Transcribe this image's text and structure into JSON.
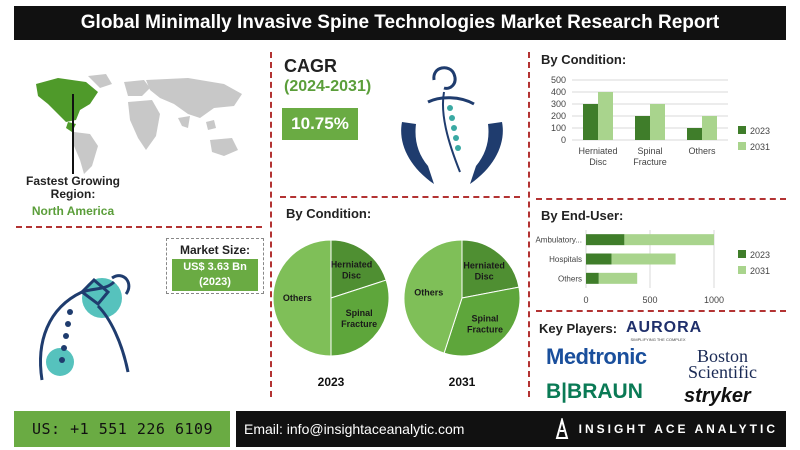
{
  "title": "Global Minimally Invasive Spine Technologies Market Research Report",
  "fastest_growing": {
    "label": "Fastest Growing Region:",
    "value": "North America"
  },
  "market_size": {
    "label": "Market Size:",
    "value": "US$ 3.63 Bn",
    "year": "(2023)"
  },
  "cagr": {
    "label": "CAGR",
    "period": "(2024-2031)",
    "value": "10.75%"
  },
  "colors": {
    "dark_green": "#3f7d2a",
    "light_green": "#a9d48d",
    "mid_green": "#6aab43",
    "pie_dark": "#4f8f32",
    "pie_mid": "#5ea63b",
    "pie_light": "#7fbf58",
    "dashed": "#b33333"
  },
  "icons": [
    "world-map-icon",
    "spine-hands-icon",
    "back-pain-icon",
    "logo-icon"
  ],
  "key_players": {
    "label": "Key Players:",
    "companies": [
      "AURORA",
      "SIMPLIFYING THE COMPLEX",
      "Medtronic",
      "Boston",
      "Scientific",
      "B|BRAUN",
      "stryker"
    ]
  },
  "footer": {
    "phone": "US: +1 551 226 6109",
    "email": "Email: info@insightaceanalytic.com",
    "brand": "INSIGHT ACE ANALYTIC"
  },
  "chart_data": [
    {
      "type": "bar",
      "title": "By Condition:",
      "categories": [
        "Herniated Disc",
        "Spinal Fracture",
        "Others"
      ],
      "category_lines": [
        [
          "Herniated",
          "Disc"
        ],
        [
          "Spinal",
          "Fracture"
        ],
        [
          "Others"
        ]
      ],
      "series": [
        {
          "name": "2023",
          "values": [
            300,
            200,
            100
          ]
        },
        {
          "name": "2031",
          "values": [
            400,
            300,
            200
          ]
        }
      ],
      "ylim": [
        0,
        500
      ],
      "yticks": [
        0,
        100,
        200,
        300,
        400,
        500
      ],
      "legend": "right",
      "grid": true
    },
    {
      "type": "bar",
      "orientation": "horizontal",
      "title": "By End-User:",
      "categories": [
        "Ambulatory...",
        "Hospitals",
        "Others"
      ],
      "series": [
        {
          "name": "2023",
          "values": [
            300,
            200,
            100
          ]
        },
        {
          "name": "2031",
          "values": [
            700,
            500,
            300
          ]
        }
      ],
      "xlim": [
        0,
        1000
      ],
      "xticks": [
        0,
        500,
        1000
      ],
      "stacked": true,
      "legend": "right",
      "grid": true
    },
    {
      "type": "pie",
      "title": "By Condition:",
      "pies": [
        {
          "year": "2023",
          "slices": [
            {
              "label": "Herniated Disc",
              "lines": [
                "Herniated",
                "Disc"
              ],
              "value": 20
            },
            {
              "label": "Spinal Fracture",
              "lines": [
                "Spinal",
                "Fracture"
              ],
              "value": 30
            },
            {
              "label": "Others",
              "lines": [
                "Others"
              ],
              "value": 50
            }
          ]
        },
        {
          "year": "2031",
          "slices": [
            {
              "label": "Herniated Disc",
              "lines": [
                "Herniated",
                "Disc"
              ],
              "value": 22
            },
            {
              "label": "Spinal Fracture",
              "lines": [
                "Spinal",
                "Fracture"
              ],
              "value": 33
            },
            {
              "label": "Others",
              "lines": [
                "Others"
              ],
              "value": 45
            }
          ]
        }
      ]
    }
  ]
}
